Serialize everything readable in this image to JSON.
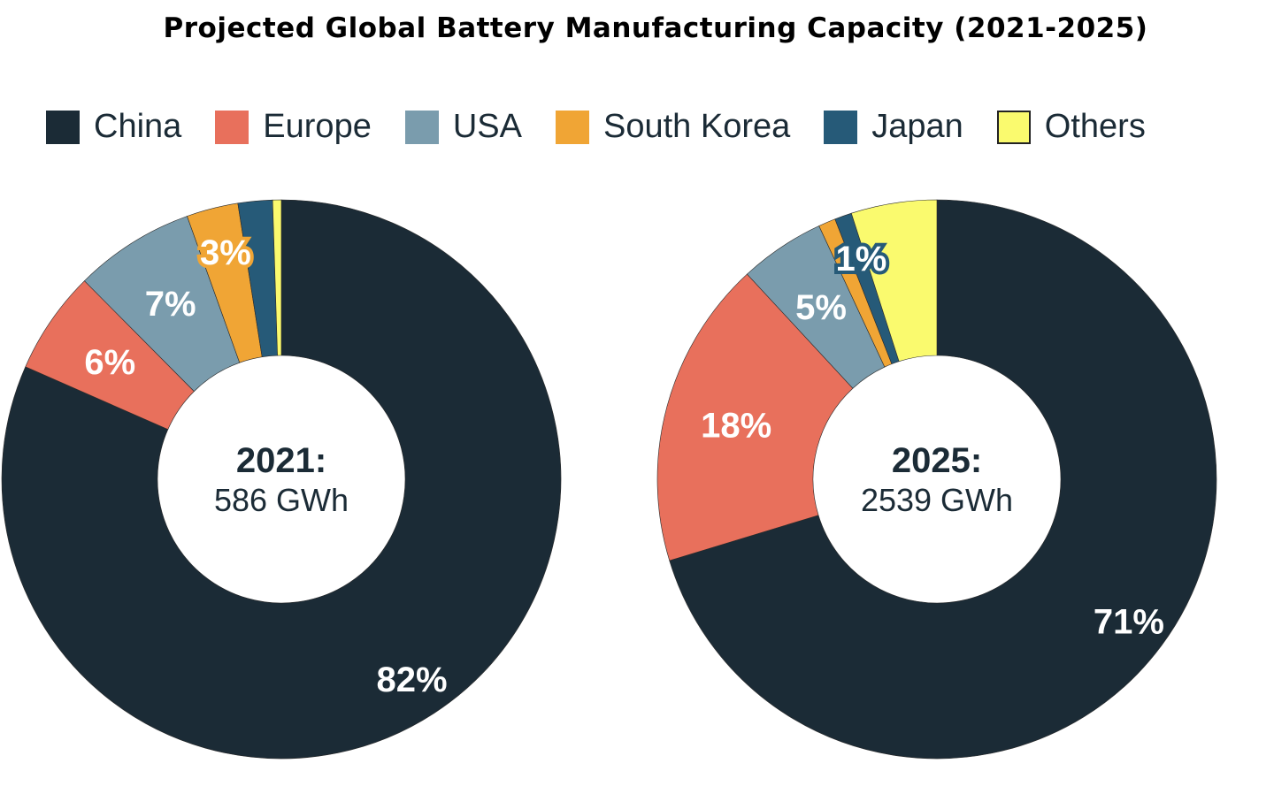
{
  "chart_data": {
    "type": "pie",
    "title": "Projected Global Battery Manufacturing Capacity (2021-2025)",
    "legend": {
      "position": "top",
      "entries": [
        "China",
        "Europe",
        "USA",
        "South Korea",
        "Japan",
        "Others"
      ]
    },
    "colors": [
      "#1b2b36",
      "#e8705c",
      "#7a9cad",
      "#f0a535",
      "#265a78",
      "#fafa6e"
    ],
    "charts": [
      {
        "center_year": "2021:",
        "center_total": "586 GWh",
        "categories": [
          "China",
          "Europe",
          "USA",
          "South Korea",
          "Japan",
          "Others"
        ],
        "values": [
          82,
          6,
          7,
          3,
          2,
          0.5
        ],
        "labels": [
          "82%",
          "6%",
          "7%",
          "3%",
          "",
          ""
        ]
      },
      {
        "center_year": "2025:",
        "center_total": "2539 GWh",
        "categories": [
          "China",
          "Europe",
          "USA",
          "South Korea",
          "Japan",
          "Others"
        ],
        "values": [
          71,
          18,
          5,
          1,
          1,
          5
        ],
        "labels": [
          "71%",
          "18%",
          "5%",
          "",
          "1%",
          ""
        ]
      }
    ]
  }
}
